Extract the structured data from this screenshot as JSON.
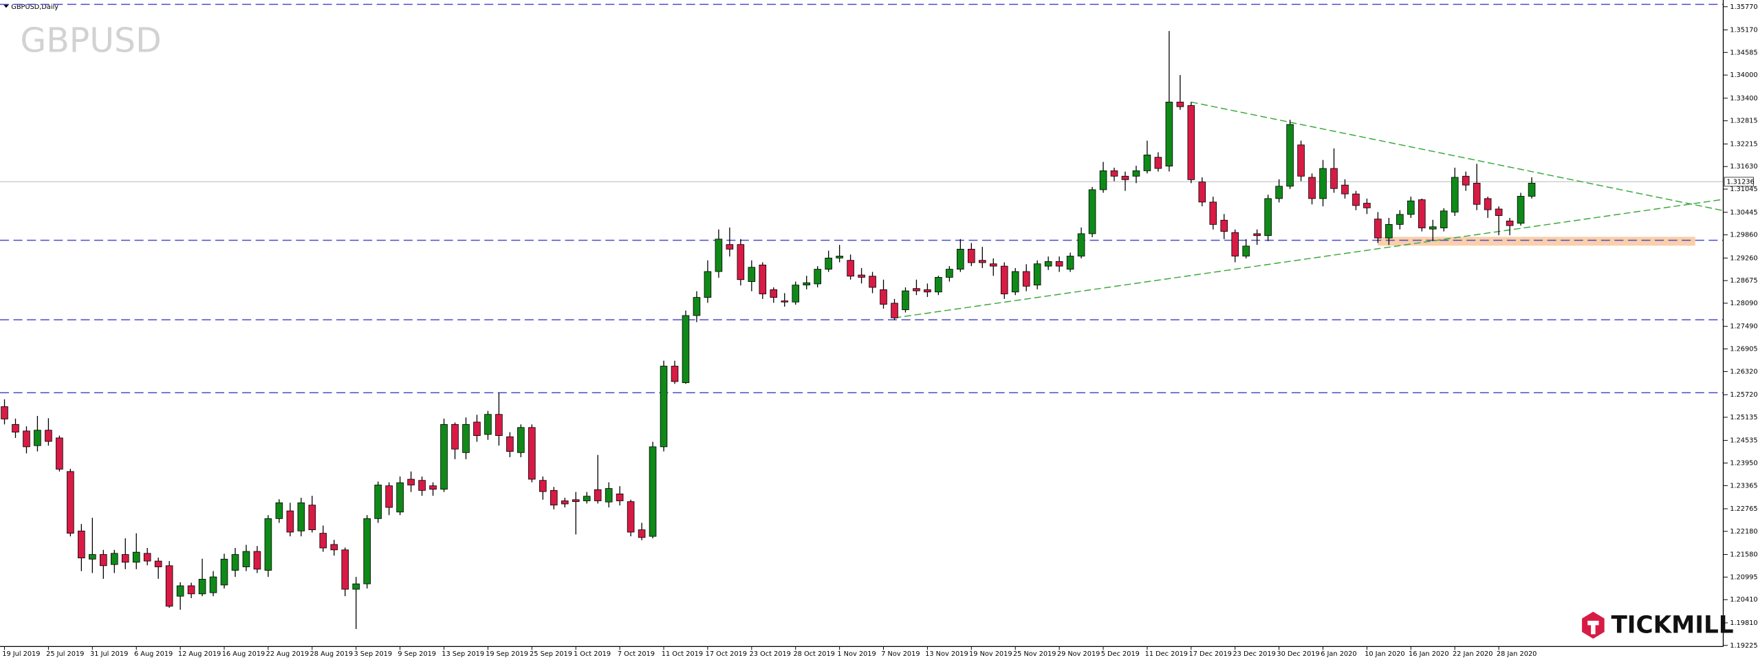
{
  "chart_data": {
    "type": "candlestick",
    "title": "GBPUSD",
    "subtitle": "GBPUSD,Daily",
    "categories": [
      "19 Jul 2019",
      null,
      null,
      null,
      "25 Jul 2019",
      null,
      null,
      null,
      "31 Jul 2019",
      null,
      null,
      null,
      "6 Aug 2019",
      null,
      null,
      null,
      "12 Aug 2019",
      null,
      null,
      null,
      "16 Aug 2019",
      null,
      null,
      null,
      "22 Aug 2019",
      null,
      null,
      null,
      "28 Aug 2019",
      null,
      null,
      null,
      "3 Sep 2019",
      null,
      null,
      null,
      "9 Sep 2019",
      null,
      null,
      null,
      "13 Sep 2019",
      null,
      null,
      null,
      "19 Sep 2019",
      null,
      null,
      null,
      "25 Sep 2019",
      null,
      null,
      null,
      "1 Oct 2019",
      null,
      null,
      null,
      "7 Oct 2019",
      null,
      null,
      null,
      "11 Oct 2019",
      null,
      null,
      null,
      "17 Oct 2019",
      null,
      null,
      null,
      "23 Oct 2019",
      null,
      null,
      null,
      "28 Oct 2019",
      null,
      null,
      null,
      "1 Nov 2019",
      null,
      null,
      null,
      "7 Nov 2019",
      null,
      null,
      null,
      "13 Nov 2019",
      null,
      null,
      null,
      "19 Nov 2019",
      null,
      null,
      null,
      "25 Nov 2019",
      null,
      null,
      null,
      "29 Nov 2019",
      null,
      null,
      null,
      "5 Dec 2019",
      null,
      null,
      null,
      "11 Dec 2019",
      null,
      null,
      null,
      "17 Dec 2019",
      null,
      null,
      null,
      "23 Dec 2019",
      null,
      null,
      null,
      "30 Dec 2019",
      null,
      null,
      null,
      "6 Jan 2020",
      null,
      null,
      null,
      "10 Jan 2020",
      null,
      null,
      null,
      "16 Jan 2020",
      null,
      null,
      null,
      "22 Jan 2020",
      null,
      null,
      null,
      "28 Jan 2020",
      null,
      null,
      null
    ],
    "open": [
      1.2541,
      1.2495,
      1.2478,
      1.244,
      1.248,
      1.246,
      1.2373,
      1.2219,
      1.2146,
      1.2158,
      1.2132,
      1.2158,
      1.2138,
      1.2161,
      1.2141,
      1.2129,
      1.205,
      1.2077,
      1.2056,
      1.2059,
      1.2079,
      1.2117,
      1.2126,
      1.2166,
      1.2117,
      1.2251,
      1.2271,
      1.2219,
      1.2286,
      1.2213,
      1.2184,
      1.217,
      1.2068,
      1.2082,
      1.2251,
      1.2336,
      1.2268,
      1.2353,
      1.235,
      1.2336,
      1.2327,
      1.2495,
      1.2422,
      1.2501,
      1.2469,
      1.2521,
      1.2463,
      1.2422,
      1.2487,
      1.235,
      1.2324,
      1.2297,
      1.23,
      1.2297,
      1.2326,
      1.2294,
      1.2315,
      1.2295,
      1.2222,
      1.2205,
      1.2437,
      1.2646,
      1.2603,
      1.2777,
      1.2824,
      1.2891,
      1.2961,
      1.2961,
      1.2865,
      1.2908,
      1.2844,
      1.2815,
      1.2812,
      1.2856,
      1.2859,
      1.2897,
      1.2926,
      1.292,
      1.2882,
      1.2879,
      1.2844,
      1.2809,
      1.2792,
      1.2847,
      1.2844,
      1.2838,
      1.2876,
      1.2897,
      1.2949,
      1.292,
      1.2911,
      1.2905,
      1.2838,
      1.2891,
      1.2856,
      1.2905,
      1.2917,
      1.2897,
      1.2931,
      1.2989,
      1.3103,
      1.3152,
      1.3138,
      1.3138,
      1.3152,
      1.3187,
      1.3164,
      1.333,
      1.3321,
      1.3123,
      1.3071,
      1.3024,
      1.2992,
      1.2931,
      1.2989,
      1.2984,
      1.308,
      1.3112,
      1.3219,
      1.3135,
      1.308,
      1.3158,
      1.3115,
      1.3092,
      1.3068,
      1.3027,
      1.2978,
      1.3013,
      1.3039,
      1.3077,
      1.3001,
      1.3004,
      1.3045,
      1.3138,
      1.312,
      1.308,
      1.3053,
      1.3022,
      1.3016,
      1.3086
    ],
    "high": [
      1.256,
      1.251,
      1.249,
      1.2517,
      1.2511,
      1.2466,
      1.238,
      1.2237,
      1.2253,
      1.217,
      1.217,
      1.22,
      1.2213,
      1.2175,
      1.215,
      1.2141,
      1.2086,
      1.2085,
      1.2147,
      1.2115,
      1.216,
      1.2175,
      1.2183,
      1.218,
      1.226,
      1.2301,
      1.2292,
      1.2305,
      1.231,
      1.2233,
      1.2196,
      1.2176,
      1.21,
      1.226,
      1.2347,
      1.2345,
      1.236,
      1.2373,
      1.236,
      1.2345,
      1.251,
      1.25,
      1.2513,
      1.252,
      1.253,
      1.2577,
      1.2475,
      1.2495,
      1.2495,
      1.236,
      1.2333,
      1.2305,
      1.232,
      1.232,
      1.2416,
      1.2345,
      1.2335,
      1.23,
      1.224,
      1.245,
      1.266,
      1.266,
      1.279,
      1.284,
      1.292,
      1.3,
      1.3005,
      1.2975,
      1.292,
      1.2915,
      1.285,
      1.2835,
      1.2865,
      1.288,
      1.2905,
      1.2945,
      1.296,
      1.2935,
      1.29,
      1.289,
      1.287,
      1.282,
      1.285,
      1.287,
      1.286,
      1.288,
      1.2905,
      1.2975,
      1.2965,
      1.2955,
      1.2925,
      1.2915,
      1.29,
      1.291,
      1.292,
      1.293,
      1.293,
      1.294,
      1.3005,
      1.311,
      1.3175,
      1.316,
      1.315,
      1.3165,
      1.323,
      1.32,
      1.3514,
      1.34,
      1.333,
      1.3135,
      1.3085,
      1.304,
      1.3,
      1.2975,
      1.3,
      1.309,
      1.313,
      1.3284,
      1.323,
      1.3145,
      1.318,
      1.321,
      1.313,
      1.31,
      1.308,
      1.3045,
      1.303,
      1.305,
      1.3085,
      1.308,
      1.3025,
      1.3055,
      1.316,
      1.315,
      1.317,
      1.3085,
      1.306,
      1.303,
      1.3095,
      1.3135
    ],
    "low": [
      1.2495,
      1.246,
      1.242,
      1.2425,
      1.244,
      1.2373,
      1.2205,
      1.2115,
      1.211,
      1.2095,
      1.211,
      1.212,
      1.212,
      1.213,
      1.2095,
      1.202,
      1.2015,
      1.2045,
      1.205,
      1.205,
      1.207,
      1.21,
      1.2115,
      1.211,
      1.21,
      1.224,
      1.2205,
      1.2205,
      1.2215,
      1.2165,
      1.2155,
      1.205,
      1.1965,
      1.207,
      1.224,
      1.226,
      1.226,
      1.232,
      1.231,
      1.231,
      1.232,
      1.2405,
      1.2405,
      1.245,
      1.2455,
      1.244,
      1.241,
      1.241,
      1.2345,
      1.23,
      1.2275,
      1.228,
      1.221,
      1.229,
      1.229,
      1.228,
      1.2285,
      1.2205,
      1.2195,
      1.22,
      1.2425,
      1.26,
      1.26,
      1.276,
      1.281,
      1.2875,
      1.293,
      1.2855,
      1.284,
      1.282,
      1.281,
      1.28,
      1.2805,
      1.2845,
      1.285,
      1.289,
      1.2915,
      1.287,
      1.286,
      1.2835,
      1.2795,
      1.2765,
      1.2785,
      1.283,
      1.2825,
      1.283,
      1.2865,
      1.289,
      1.2905,
      1.29,
      1.288,
      1.282,
      1.283,
      1.284,
      1.2845,
      1.2895,
      1.289,
      1.289,
      1.2925,
      1.298,
      1.3095,
      1.3125,
      1.31,
      1.312,
      1.3145,
      1.315,
      1.315,
      1.331,
      1.312,
      1.306,
      1.3,
      1.2975,
      1.2915,
      1.2925,
      1.296,
      1.297,
      1.307,
      1.3105,
      1.3125,
      1.3065,
      1.306,
      1.3095,
      1.308,
      1.305,
      1.304,
      1.2965,
      1.296,
      1.3,
      1.303,
      1.2995,
      1.297,
      1.2995,
      1.3035,
      1.31,
      1.305,
      1.303,
      1.2985,
      1.2985,
      1.301,
      1.308
    ],
    "close": [
      1.2509,
      1.2475,
      1.2437,
      1.248,
      1.2451,
      1.2379,
      1.2213,
      1.2149,
      1.2158,
      1.2129,
      1.2161,
      1.2138,
      1.2164,
      1.2141,
      1.2126,
      1.2024,
      1.2077,
      1.2056,
      1.2094,
      1.21,
      1.2146,
      1.2158,
      1.2166,
      1.212,
      1.2251,
      1.2292,
      1.2216,
      1.2292,
      1.2222,
      1.2175,
      1.217,
      1.2068,
      1.2082,
      1.2251,
      1.2338,
      1.228,
      1.2344,
      1.2338,
      1.2324,
      1.2327,
      1.2495,
      1.2431,
      1.2495,
      1.2466,
      1.2521,
      1.2466,
      1.2425,
      1.2487,
      1.2353,
      1.2321,
      1.2286,
      1.2289,
      1.2295,
      1.2309,
      1.2297,
      1.2329,
      1.2297,
      1.2216,
      1.2202,
      1.2437,
      1.2646,
      1.2606,
      1.2777,
      1.2824,
      1.2891,
      1.2975,
      1.2949,
      1.287,
      1.2902,
      1.2833,
      1.2824,
      1.2812,
      1.2856,
      1.2862,
      1.2897,
      1.2926,
      1.2931,
      1.2879,
      1.2876,
      1.285,
      1.2806,
      1.2771,
      1.2841,
      1.2841,
      1.2838,
      1.2876,
      1.2897,
      1.2949,
      1.2914,
      1.2914,
      1.2905,
      1.2833,
      1.2891,
      1.2853,
      1.2911,
      1.2917,
      1.2905,
      1.2931,
      1.2989,
      1.3103,
      1.3152,
      1.3138,
      1.3129,
      1.3152,
      1.3193,
      1.3158,
      1.333,
      1.3318,
      1.3129,
      1.3071,
      1.3013,
      1.2995,
      1.2931,
      1.2957,
      1.2984,
      1.308,
      1.3112,
      1.3272,
      1.3138,
      1.308,
      1.3158,
      1.3106,
      1.3092,
      1.3062,
      1.3056,
      1.2978,
      1.3013,
      1.3039,
      1.3074,
      1.3004,
      1.3007,
      1.3048,
      1.3135,
      1.3115,
      1.3065,
      1.3051,
      1.3036,
      1.301,
      1.3086,
      1.312
    ],
    "up_color": "#0f8a18",
    "down_color": "#d81b45",
    "ylim": [
      1.19196,
      1.35944
    ],
    "yticks": [
      {
        "value": 1.3577,
        "label": "1.35770"
      },
      {
        "value": 1.3517,
        "label": "1.35170"
      },
      1.34585,
      {
        "value": 1.34,
        "label": "1.34000"
      },
      {
        "value": 1.334,
        "label": "1.33400"
      },
      1.32815,
      1.32215,
      {
        "value": 1.3163,
        "label": "1.31630"
      },
      1.31045,
      1.30445,
      {
        "value": 1.2986,
        "label": "1.29860"
      },
      {
        "value": 1.2926,
        "label": "1.29260"
      },
      1.28675,
      {
        "value": 1.2809,
        "label": "1.28090"
      },
      {
        "value": 1.2749,
        "label": "1.27490"
      },
      1.26905,
      {
        "value": 1.2632,
        "label": "1.26320"
      },
      {
        "value": 1.2572,
        "label": "1.25720"
      },
      1.25135,
      1.24535,
      {
        "value": 1.2395,
        "label": "1.23950"
      },
      1.23365,
      1.22765,
      {
        "value": 1.2218,
        "label": "1.22180"
      },
      {
        "value": 1.2158,
        "label": "1.21580"
      },
      1.20995,
      {
        "value": 1.2041,
        "label": "1.20410"
      },
      {
        "value": 1.1981,
        "label": "1.19810"
      },
      1.19225
    ],
    "last_price": 1.31236,
    "levels": [
      1.3583,
      1.2972,
      1.2766,
      1.2577
    ],
    "level_color": "#4a4ad0",
    "trendlines": [
      {
        "x": [
          108,
          139
        ],
        "y": [
          1.333,
          1.315
        ]
      },
      {
        "x": [
          81,
          139
        ],
        "y": [
          1.2771,
          1.3007
        ]
      }
    ],
    "trend_color": "#3aa83a",
    "zone": {
      "x": 125,
      "range": [
        1.2958,
        1.2981
      ],
      "color": "#f9c79a"
    }
  },
  "logo": {
    "text": "TICKMILL"
  }
}
